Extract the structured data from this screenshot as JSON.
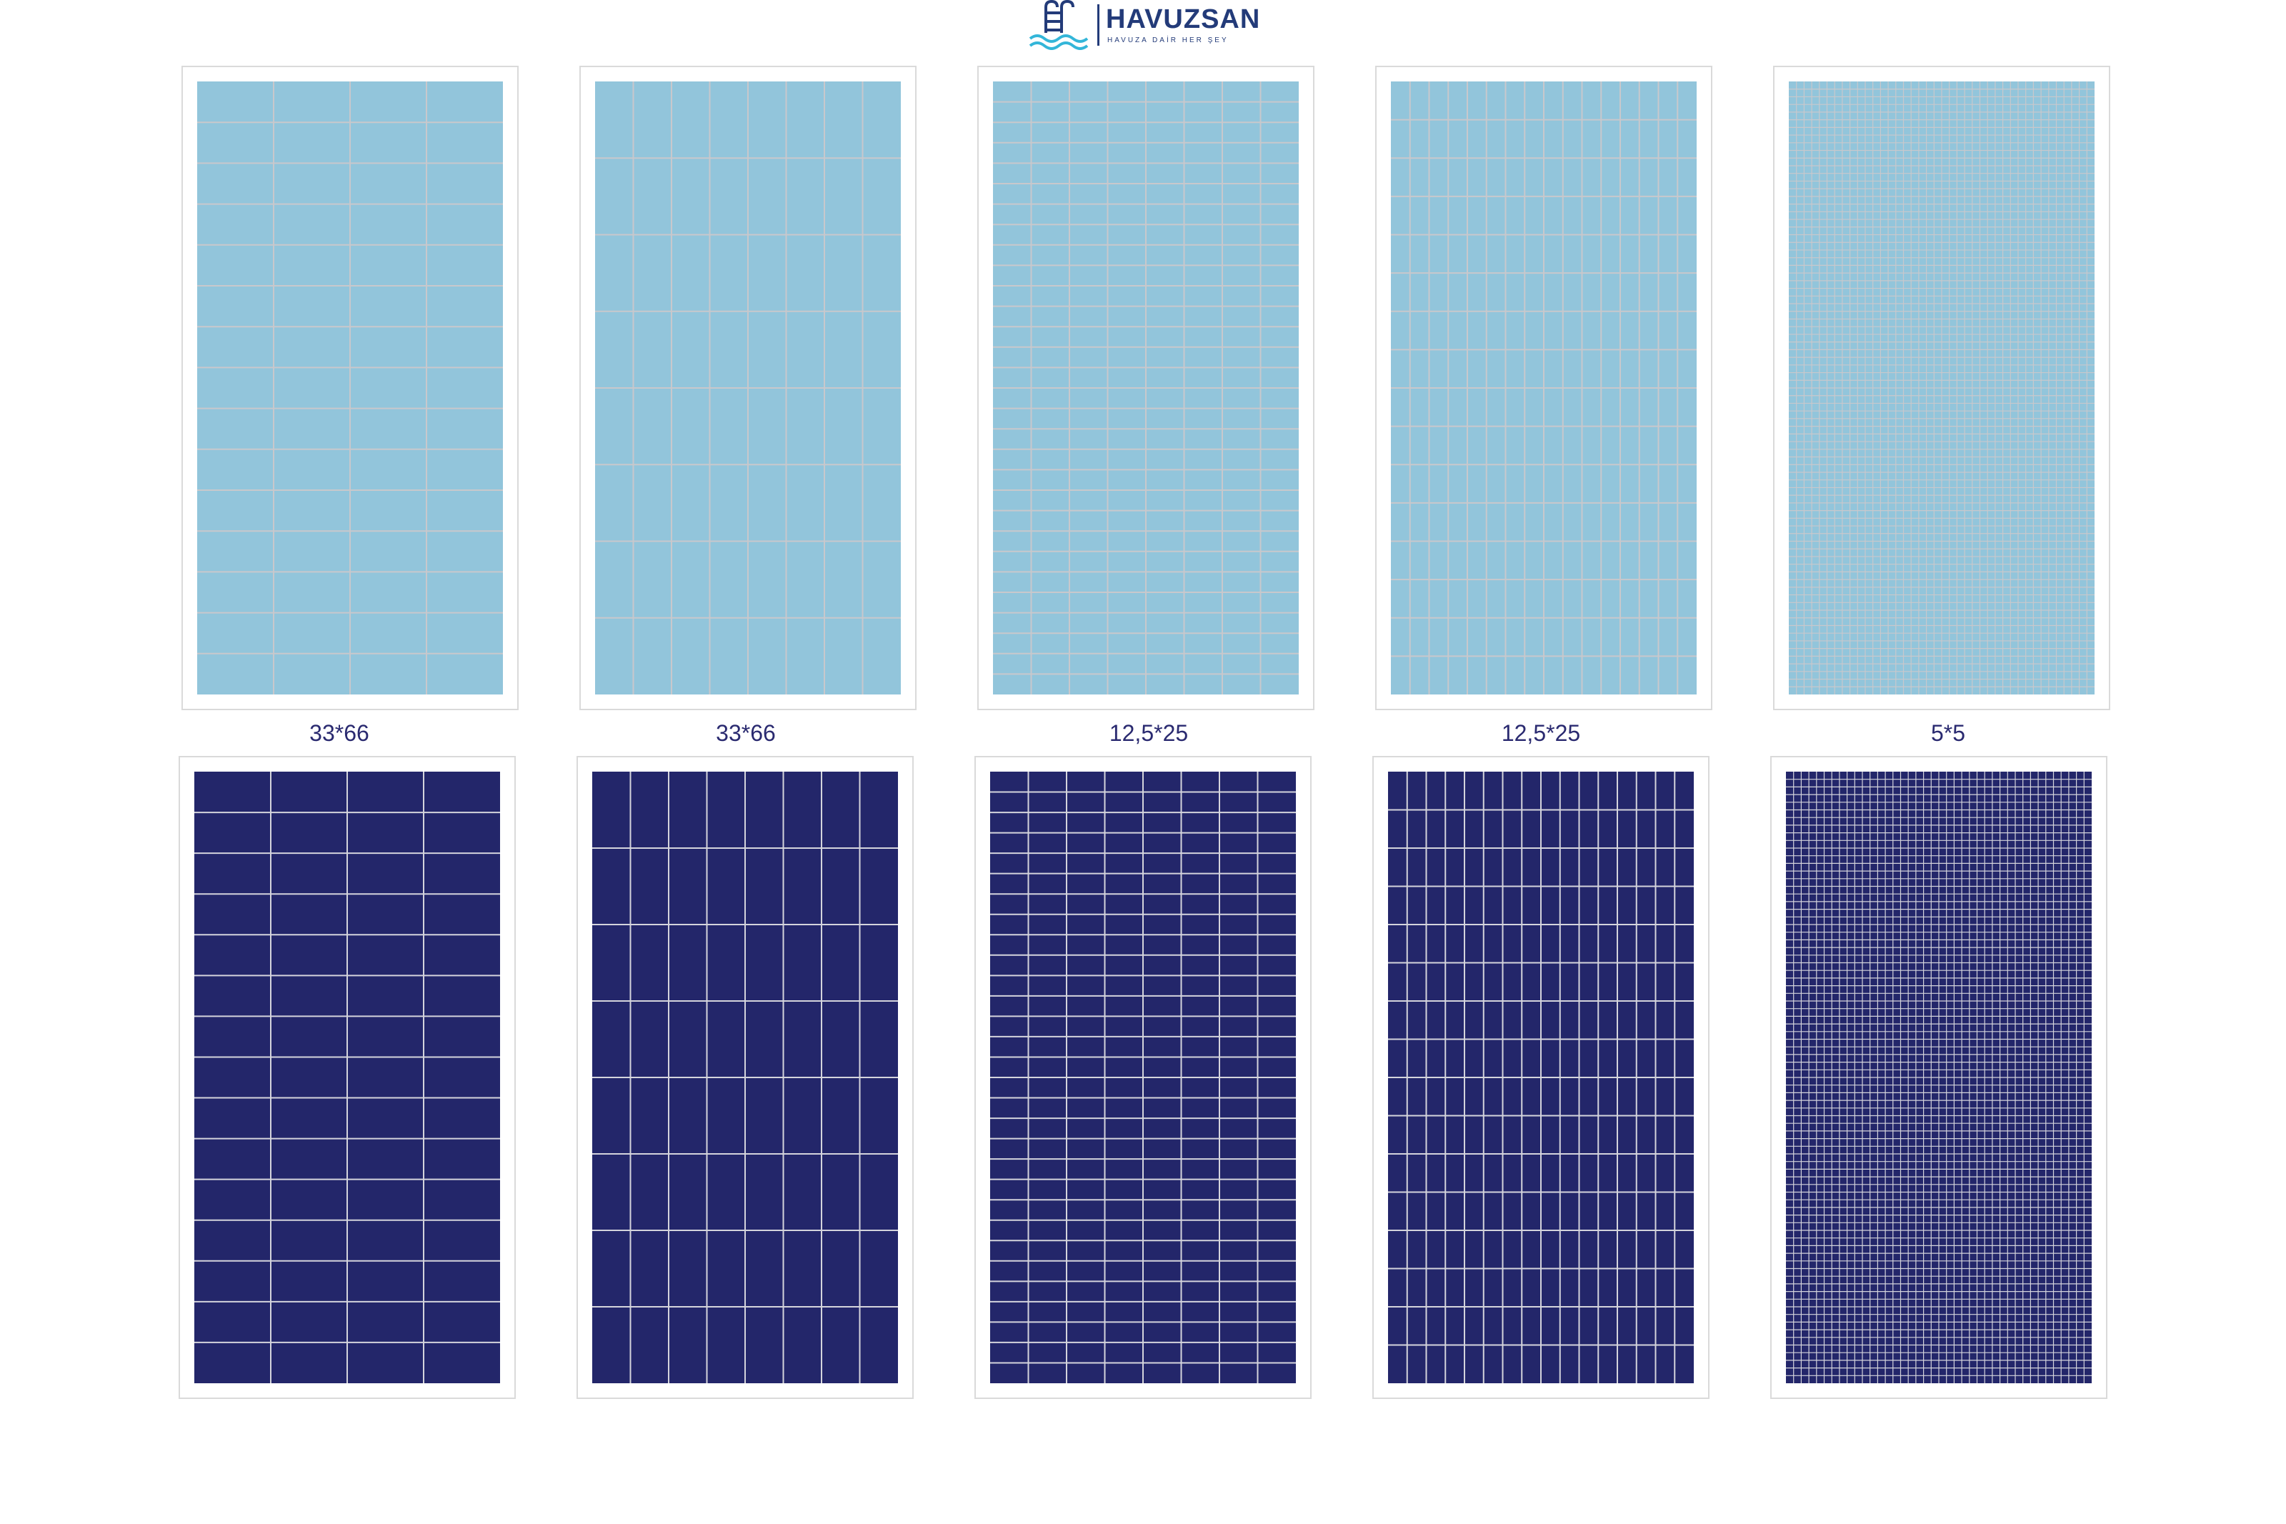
{
  "brand": {
    "name": "HAVUZSAN",
    "tagline": "HAVUZA DAİR HER ŞEY",
    "color": "#233b79",
    "wave_color": "#33b6d9",
    "icon": "pool-ladder-icon"
  },
  "colors": {
    "light_tile": "#92c5db",
    "light_grout": "#c8c8cc",
    "dark_tile": "#23266a",
    "dark_grout": "#d4d4dc",
    "card_border": "#dadada",
    "caption": "#2a2a70"
  },
  "captions": [
    "33*66",
    "33*66",
    "12,5*25",
    "12,5*25",
    "5*5"
  ],
  "rows": [
    {
      "name": "light",
      "tiles": [
        {
          "size": "33*66",
          "cols": 4,
          "rows": 15
        },
        {
          "size": "33*66",
          "cols": 8,
          "rows": 8
        },
        {
          "size": "12,5*25",
          "cols": 8,
          "rows": 30
        },
        {
          "size": "12,5*25",
          "cols": 16,
          "rows": 16
        },
        {
          "size": "5*5",
          "cols": 40,
          "rows": 80
        }
      ]
    },
    {
      "name": "dark",
      "tiles": [
        {
          "size": "33*66",
          "cols": 4,
          "rows": 15
        },
        {
          "size": "33*66",
          "cols": 8,
          "rows": 8
        },
        {
          "size": "12,5*25",
          "cols": 8,
          "rows": 30
        },
        {
          "size": "12,5*25",
          "cols": 16,
          "rows": 16
        },
        {
          "size": "5*5",
          "cols": 40,
          "rows": 80
        }
      ]
    }
  ]
}
